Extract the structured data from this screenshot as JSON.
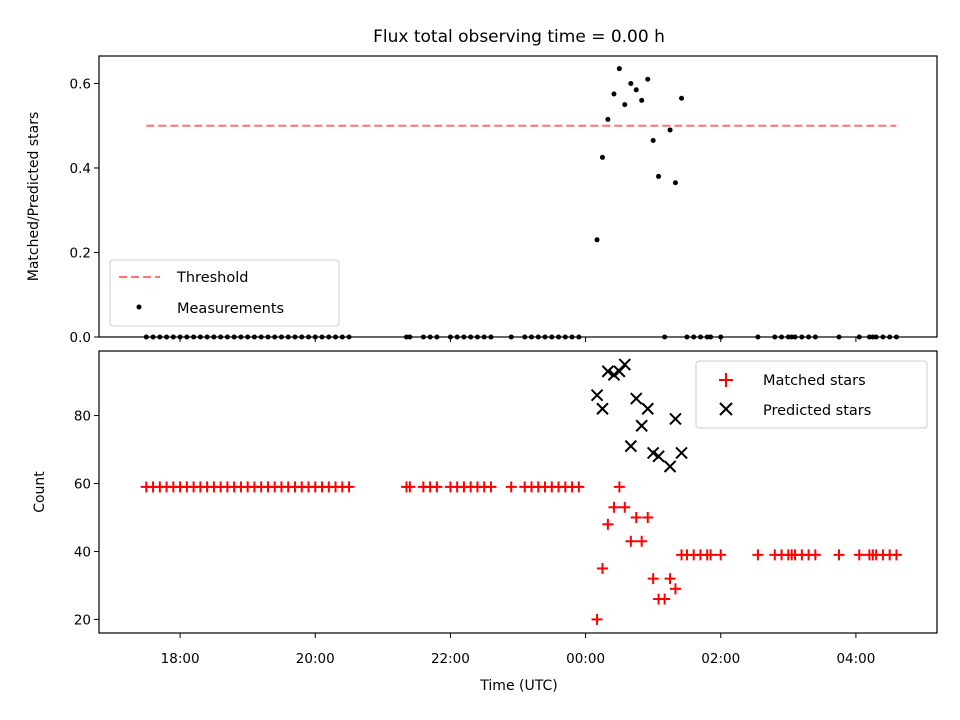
{
  "chart_data": {
    "title": "Flux total observing time = 0.00 h",
    "xlabel": "Time (UTC)",
    "x_unit": "hours relative to 00:00 UTC",
    "x_ticks": [
      {
        "x": -6,
        "label": "18:00"
      },
      {
        "x": -4,
        "label": "20:00"
      },
      {
        "x": -2,
        "label": "22:00"
      },
      {
        "x": 0,
        "label": "00:00"
      },
      {
        "x": 2,
        "label": "02:00"
      },
      {
        "x": 4,
        "label": "04:00"
      }
    ],
    "xlim": [
      -7.2,
      5.2
    ],
    "panels": [
      {
        "type": "scatter",
        "ylabel": "Matched/Predicted stars",
        "ylim": [
          0,
          0.665
        ],
        "y_ticks": [
          {
            "y": 0.0,
            "label": "0.0"
          },
          {
            "y": 0.2,
            "label": "0.2"
          },
          {
            "y": 0.4,
            "label": "0.4"
          },
          {
            "y": 0.6,
            "label": "0.6"
          }
        ],
        "legend_position": "lower-left",
        "threshold": {
          "name": "Threshold",
          "value": 0.5,
          "x_range": [
            -6.5,
            4.6
          ],
          "color": "#ff7070"
        },
        "series": [
          {
            "name": "Measurements",
            "marker": "dot",
            "color": "#000000",
            "points": [
              [
                -6.5,
                0
              ],
              [
                -6.4,
                0
              ],
              [
                -6.3,
                0
              ],
              [
                -6.2,
                0
              ],
              [
                -6.1,
                0
              ],
              [
                -6.0,
                0
              ],
              [
                -5.9,
                0
              ],
              [
                -5.8,
                0
              ],
              [
                -5.7,
                0
              ],
              [
                -5.6,
                0
              ],
              [
                -5.5,
                0
              ],
              [
                -5.4,
                0
              ],
              [
                -5.3,
                0
              ],
              [
                -5.2,
                0
              ],
              [
                -5.1,
                0
              ],
              [
                -5.0,
                0
              ],
              [
                -4.9,
                0
              ],
              [
                -4.8,
                0
              ],
              [
                -4.7,
                0
              ],
              [
                -4.6,
                0
              ],
              [
                -4.5,
                0
              ],
              [
                -4.4,
                0
              ],
              [
                -4.3,
                0
              ],
              [
                -4.2,
                0
              ],
              [
                -4.1,
                0
              ],
              [
                -4.0,
                0
              ],
              [
                -3.9,
                0
              ],
              [
                -3.8,
                0
              ],
              [
                -3.7,
                0
              ],
              [
                -3.6,
                0
              ],
              [
                -3.5,
                0
              ],
              [
                -2.65,
                0
              ],
              [
                -2.6,
                0
              ],
              [
                -2.4,
                0
              ],
              [
                -2.3,
                0
              ],
              [
                -2.2,
                0
              ],
              [
                -2.0,
                0
              ],
              [
                -1.9,
                0
              ],
              [
                -1.8,
                0
              ],
              [
                -1.7,
                0
              ],
              [
                -1.6,
                0
              ],
              [
                -1.5,
                0
              ],
              [
                -1.4,
                0
              ],
              [
                -1.1,
                0
              ],
              [
                -0.9,
                0
              ],
              [
                -0.8,
                0
              ],
              [
                -0.7,
                0
              ],
              [
                -0.6,
                0
              ],
              [
                -0.5,
                0
              ],
              [
                -0.4,
                0
              ],
              [
                -0.3,
                0
              ],
              [
                -0.2,
                0
              ],
              [
                -0.1,
                0
              ],
              [
                0.17,
                0.23
              ],
              [
                0.25,
                0.425
              ],
              [
                0.33,
                0.515
              ],
              [
                0.42,
                0.575
              ],
              [
                0.5,
                0.635
              ],
              [
                0.58,
                0.55
              ],
              [
                0.67,
                0.6
              ],
              [
                0.75,
                0.585
              ],
              [
                0.83,
                0.56
              ],
              [
                0.92,
                0.61
              ],
              [
                1.0,
                0.465
              ],
              [
                1.08,
                0.38
              ],
              [
                1.17,
                0
              ],
              [
                1.25,
                0.49
              ],
              [
                1.33,
                0.365
              ],
              [
                1.42,
                0.565
              ],
              [
                1.5,
                0
              ],
              [
                1.6,
                0
              ],
              [
                1.7,
                0
              ],
              [
                1.8,
                0
              ],
              [
                1.85,
                0
              ],
              [
                2.0,
                0
              ],
              [
                2.55,
                0
              ],
              [
                2.8,
                0
              ],
              [
                2.9,
                0
              ],
              [
                3.0,
                0
              ],
              [
                3.05,
                0
              ],
              [
                3.1,
                0
              ],
              [
                3.2,
                0
              ],
              [
                3.3,
                0
              ],
              [
                3.4,
                0
              ],
              [
                3.75,
                0
              ],
              [
                4.05,
                0
              ],
              [
                4.2,
                0
              ],
              [
                4.25,
                0
              ],
              [
                4.3,
                0
              ],
              [
                4.4,
                0
              ],
              [
                4.5,
                0
              ],
              [
                4.6,
                0
              ]
            ]
          }
        ]
      },
      {
        "type": "scatter",
        "ylabel": "Count",
        "ylim": [
          16,
          99
        ],
        "y_ticks": [
          {
            "y": 20,
            "label": "20"
          },
          {
            "y": 40,
            "label": "40"
          },
          {
            "y": 60,
            "label": "60"
          },
          {
            "y": 80,
            "label": "80"
          }
        ],
        "legend_position": "upper-right",
        "series": [
          {
            "name": "Matched stars",
            "marker": "plus",
            "color": "#ff0000",
            "points": [
              [
                -6.5,
                59
              ],
              [
                -6.4,
                59
              ],
              [
                -6.3,
                59
              ],
              [
                -6.2,
                59
              ],
              [
                -6.1,
                59
              ],
              [
                -6.0,
                59
              ],
              [
                -5.9,
                59
              ],
              [
                -5.8,
                59
              ],
              [
                -5.7,
                59
              ],
              [
                -5.6,
                59
              ],
              [
                -5.5,
                59
              ],
              [
                -5.4,
                59
              ],
              [
                -5.3,
                59
              ],
              [
                -5.2,
                59
              ],
              [
                -5.1,
                59
              ],
              [
                -5.0,
                59
              ],
              [
                -4.9,
                59
              ],
              [
                -4.8,
                59
              ],
              [
                -4.7,
                59
              ],
              [
                -4.6,
                59
              ],
              [
                -4.5,
                59
              ],
              [
                -4.4,
                59
              ],
              [
                -4.3,
                59
              ],
              [
                -4.2,
                59
              ],
              [
                -4.1,
                59
              ],
              [
                -4.0,
                59
              ],
              [
                -3.9,
                59
              ],
              [
                -3.8,
                59
              ],
              [
                -3.7,
                59
              ],
              [
                -3.6,
                59
              ],
              [
                -3.5,
                59
              ],
              [
                -2.65,
                59
              ],
              [
                -2.6,
                59
              ],
              [
                -2.4,
                59
              ],
              [
                -2.3,
                59
              ],
              [
                -2.2,
                59
              ],
              [
                -2.0,
                59
              ],
              [
                -1.9,
                59
              ],
              [
                -1.8,
                59
              ],
              [
                -1.7,
                59
              ],
              [
                -1.6,
                59
              ],
              [
                -1.5,
                59
              ],
              [
                -1.4,
                59
              ],
              [
                -1.1,
                59
              ],
              [
                -0.9,
                59
              ],
              [
                -0.8,
                59
              ],
              [
                -0.7,
                59
              ],
              [
                -0.6,
                59
              ],
              [
                -0.5,
                59
              ],
              [
                -0.4,
                59
              ],
              [
                -0.3,
                59
              ],
              [
                -0.2,
                59
              ],
              [
                -0.1,
                59
              ],
              [
                0.17,
                20
              ],
              [
                0.25,
                35
              ],
              [
                0.33,
                48
              ],
              [
                0.42,
                53
              ],
              [
                0.5,
                59
              ],
              [
                0.58,
                53
              ],
              [
                0.67,
                43
              ],
              [
                0.75,
                50
              ],
              [
                0.83,
                43
              ],
              [
                0.92,
                50
              ],
              [
                1.0,
                32
              ],
              [
                1.08,
                26
              ],
              [
                1.17,
                26
              ],
              [
                1.25,
                32
              ],
              [
                1.33,
                29
              ],
              [
                1.42,
                39
              ],
              [
                1.5,
                39
              ],
              [
                1.6,
                39
              ],
              [
                1.7,
                39
              ],
              [
                1.8,
                39
              ],
              [
                1.85,
                39
              ],
              [
                2.0,
                39
              ],
              [
                2.55,
                39
              ],
              [
                2.8,
                39
              ],
              [
                2.9,
                39
              ],
              [
                3.0,
                39
              ],
              [
                3.05,
                39
              ],
              [
                3.1,
                39
              ],
              [
                3.2,
                39
              ],
              [
                3.3,
                39
              ],
              [
                3.4,
                39
              ],
              [
                3.75,
                39
              ],
              [
                4.05,
                39
              ],
              [
                4.2,
                39
              ],
              [
                4.25,
                39
              ],
              [
                4.3,
                39
              ],
              [
                4.4,
                39
              ],
              [
                4.5,
                39
              ],
              [
                4.6,
                39
              ]
            ]
          },
          {
            "name": "Predicted stars",
            "marker": "x",
            "color": "#000000",
            "points": [
              [
                0.17,
                86
              ],
              [
                0.25,
                82
              ],
              [
                0.33,
                93
              ],
              [
                0.42,
                92
              ],
              [
                0.5,
                93
              ],
              [
                0.58,
                95
              ],
              [
                0.67,
                71
              ],
              [
                0.75,
                85
              ],
              [
                0.83,
                77
              ],
              [
                0.92,
                82
              ],
              [
                1.0,
                69
              ],
              [
                1.08,
                68
              ],
              [
                1.25,
                65
              ],
              [
                1.33,
                79
              ],
              [
                1.42,
                69
              ]
            ]
          }
        ]
      }
    ]
  }
}
